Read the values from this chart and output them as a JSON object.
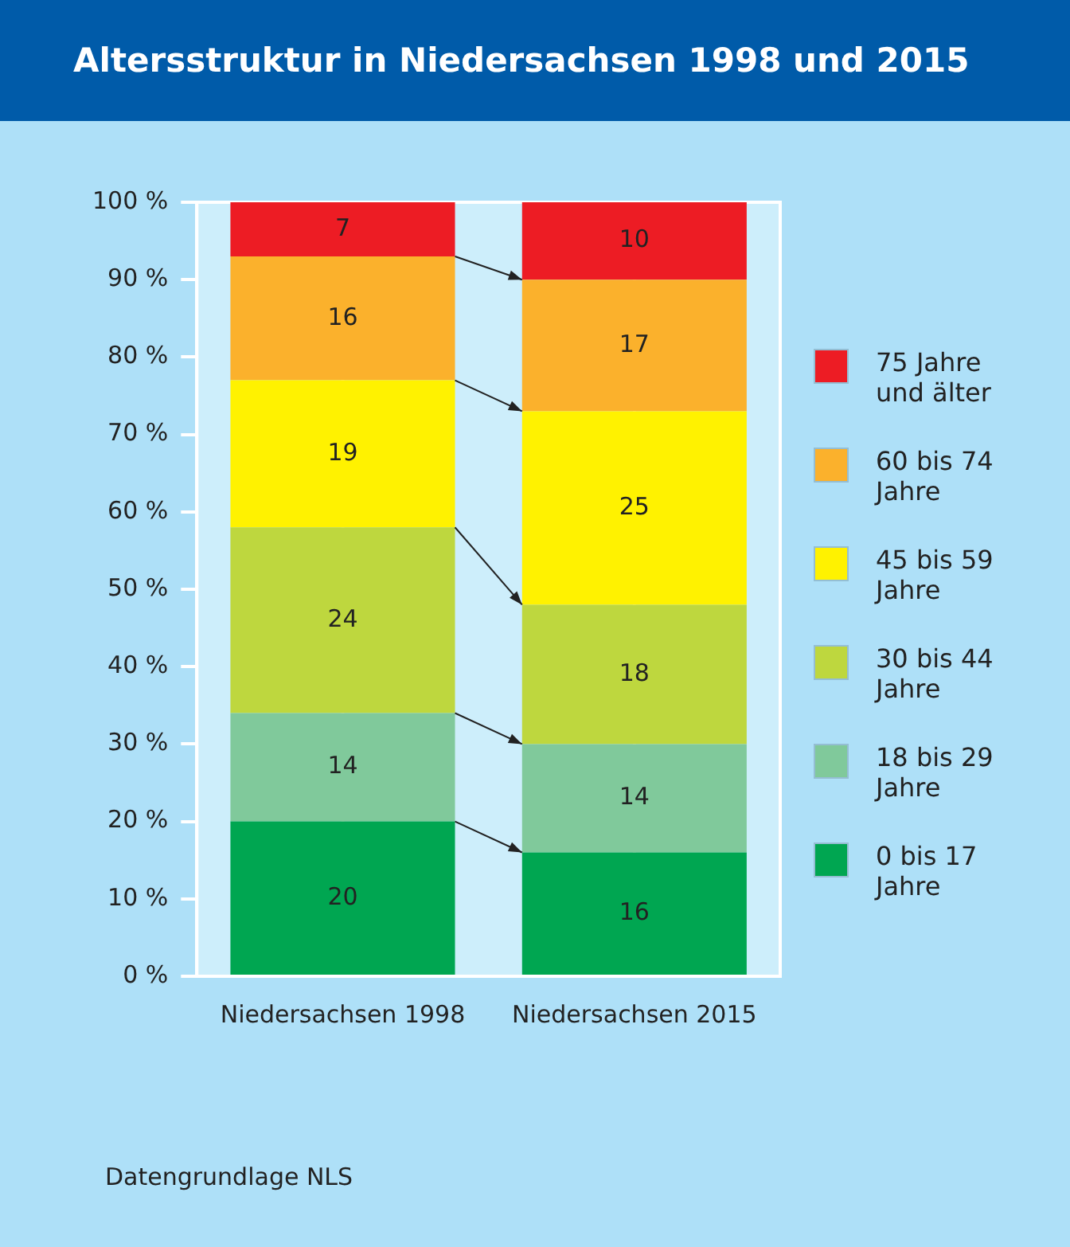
{
  "chart_data": {
    "type": "bar",
    "title": "Altersstruktur in Niedersachsen 1998 und 2015",
    "categories": [
      "Niedersachsen 1998",
      "Niedersachsen 2015"
    ],
    "stacked": true,
    "data_labels": true,
    "grid": "x",
    "legend": "right",
    "ylim": [
      0,
      100
    ],
    "yticks": [
      {
        "value": 0,
        "label": "0 %"
      },
      {
        "value": 10,
        "label": "10 %"
      },
      {
        "value": 20,
        "label": "20 %"
      },
      {
        "value": 30,
        "label": "30 %"
      },
      {
        "value": 40,
        "label": "40 %"
      },
      {
        "value": 50,
        "label": "50 %"
      },
      {
        "value": 60,
        "label": "60 %"
      },
      {
        "value": 70,
        "label": "70 %"
      },
      {
        "value": 80,
        "label": "80 %"
      },
      {
        "value": 90,
        "label": "90 %"
      },
      {
        "value": 100,
        "label": "100 %"
      }
    ],
    "series": [
      {
        "name": "0 bis 17 Jahre",
        "color": "#00a651",
        "values": [
          20,
          16
        ]
      },
      {
        "name": "18 bis 29 Jahre",
        "color": "#80c99b",
        "values": [
          14,
          14
        ]
      },
      {
        "name": "30 bis 44 Jahre",
        "color": "#bed73e",
        "values": [
          24,
          18
        ]
      },
      {
        "name": "45 bis 59 Jahre",
        "color": "#fff200",
        "values": [
          19,
          25
        ]
      },
      {
        "name": "60 bis 74 Jahre",
        "color": "#fbb12c",
        "values": [
          16,
          17
        ]
      },
      {
        "name": "75 Jahre und älter",
        "color": "#ed1c24",
        "values": [
          7,
          10
        ]
      }
    ],
    "annotations": [
      "Datengrundlage NLS"
    ]
  }
}
